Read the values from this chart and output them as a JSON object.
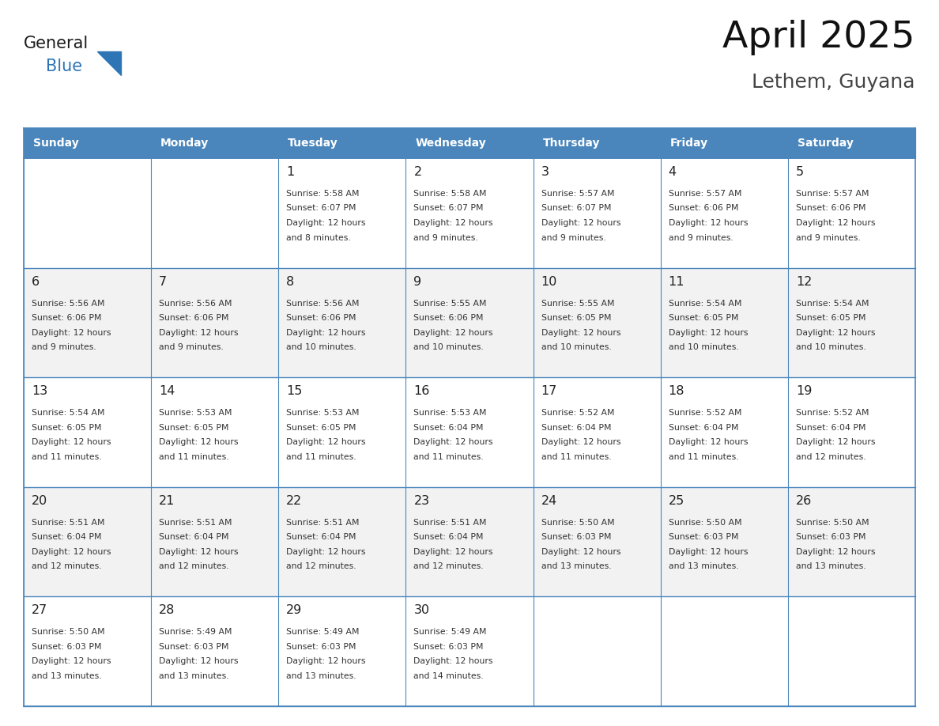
{
  "title": "April 2025",
  "subtitle": "Lethem, Guyana",
  "header_bg": "#4A86BC",
  "header_text_color": "#FFFFFF",
  "cell_bg_white": "#FFFFFF",
  "cell_bg_gray": "#F2F2F2",
  "border_color": "#4A86BC",
  "text_color": "#333333",
  "day_num_color": "#222222",
  "logo_general_color": "#1A1A1A",
  "logo_blue_color": "#2E75B6",
  "triangle_color": "#2E75B6",
  "days_of_week": [
    "Sunday",
    "Monday",
    "Tuesday",
    "Wednesday",
    "Thursday",
    "Friday",
    "Saturday"
  ],
  "calendar": [
    [
      {
        "day": "",
        "sunrise": "",
        "sunset": "",
        "daylight_suffix": ""
      },
      {
        "day": "",
        "sunrise": "",
        "sunset": "",
        "daylight_suffix": ""
      },
      {
        "day": "1",
        "sunrise": "5:58 AM",
        "sunset": "6:07 PM",
        "daylight_suffix": "and 8 minutes."
      },
      {
        "day": "2",
        "sunrise": "5:58 AM",
        "sunset": "6:07 PM",
        "daylight_suffix": "and 9 minutes."
      },
      {
        "day": "3",
        "sunrise": "5:57 AM",
        "sunset": "6:07 PM",
        "daylight_suffix": "and 9 minutes."
      },
      {
        "day": "4",
        "sunrise": "5:57 AM",
        "sunset": "6:06 PM",
        "daylight_suffix": "and 9 minutes."
      },
      {
        "day": "5",
        "sunrise": "5:57 AM",
        "sunset": "6:06 PM",
        "daylight_suffix": "and 9 minutes."
      }
    ],
    [
      {
        "day": "6",
        "sunrise": "5:56 AM",
        "sunset": "6:06 PM",
        "daylight_suffix": "and 9 minutes."
      },
      {
        "day": "7",
        "sunrise": "5:56 AM",
        "sunset": "6:06 PM",
        "daylight_suffix": "and 9 minutes."
      },
      {
        "day": "8",
        "sunrise": "5:56 AM",
        "sunset": "6:06 PM",
        "daylight_suffix": "and 10 minutes."
      },
      {
        "day": "9",
        "sunrise": "5:55 AM",
        "sunset": "6:06 PM",
        "daylight_suffix": "and 10 minutes."
      },
      {
        "day": "10",
        "sunrise": "5:55 AM",
        "sunset": "6:05 PM",
        "daylight_suffix": "and 10 minutes."
      },
      {
        "day": "11",
        "sunrise": "5:54 AM",
        "sunset": "6:05 PM",
        "daylight_suffix": "and 10 minutes."
      },
      {
        "day": "12",
        "sunrise": "5:54 AM",
        "sunset": "6:05 PM",
        "daylight_suffix": "and 10 minutes."
      }
    ],
    [
      {
        "day": "13",
        "sunrise": "5:54 AM",
        "sunset": "6:05 PM",
        "daylight_suffix": "and 11 minutes."
      },
      {
        "day": "14",
        "sunrise": "5:53 AM",
        "sunset": "6:05 PM",
        "daylight_suffix": "and 11 minutes."
      },
      {
        "day": "15",
        "sunrise": "5:53 AM",
        "sunset": "6:05 PM",
        "daylight_suffix": "and 11 minutes."
      },
      {
        "day": "16",
        "sunrise": "5:53 AM",
        "sunset": "6:04 PM",
        "daylight_suffix": "and 11 minutes."
      },
      {
        "day": "17",
        "sunrise": "5:52 AM",
        "sunset": "6:04 PM",
        "daylight_suffix": "and 11 minutes."
      },
      {
        "day": "18",
        "sunrise": "5:52 AM",
        "sunset": "6:04 PM",
        "daylight_suffix": "and 11 minutes."
      },
      {
        "day": "19",
        "sunrise": "5:52 AM",
        "sunset": "6:04 PM",
        "daylight_suffix": "and 12 minutes."
      }
    ],
    [
      {
        "day": "20",
        "sunrise": "5:51 AM",
        "sunset": "6:04 PM",
        "daylight_suffix": "and 12 minutes."
      },
      {
        "day": "21",
        "sunrise": "5:51 AM",
        "sunset": "6:04 PM",
        "daylight_suffix": "and 12 minutes."
      },
      {
        "day": "22",
        "sunrise": "5:51 AM",
        "sunset": "6:04 PM",
        "daylight_suffix": "and 12 minutes."
      },
      {
        "day": "23",
        "sunrise": "5:51 AM",
        "sunset": "6:04 PM",
        "daylight_suffix": "and 12 minutes."
      },
      {
        "day": "24",
        "sunrise": "5:50 AM",
        "sunset": "6:03 PM",
        "daylight_suffix": "and 13 minutes."
      },
      {
        "day": "25",
        "sunrise": "5:50 AM",
        "sunset": "6:03 PM",
        "daylight_suffix": "and 13 minutes."
      },
      {
        "day": "26",
        "sunrise": "5:50 AM",
        "sunset": "6:03 PM",
        "daylight_suffix": "and 13 minutes."
      }
    ],
    [
      {
        "day": "27",
        "sunrise": "5:50 AM",
        "sunset": "6:03 PM",
        "daylight_suffix": "and 13 minutes."
      },
      {
        "day": "28",
        "sunrise": "5:49 AM",
        "sunset": "6:03 PM",
        "daylight_suffix": "and 13 minutes."
      },
      {
        "day": "29",
        "sunrise": "5:49 AM",
        "sunset": "6:03 PM",
        "daylight_suffix": "and 13 minutes."
      },
      {
        "day": "30",
        "sunrise": "5:49 AM",
        "sunset": "6:03 PM",
        "daylight_suffix": "and 14 minutes."
      },
      {
        "day": "",
        "sunrise": "",
        "sunset": "",
        "daylight_suffix": ""
      },
      {
        "day": "",
        "sunrise": "",
        "sunset": "",
        "daylight_suffix": ""
      },
      {
        "day": "",
        "sunrise": "",
        "sunset": "",
        "daylight_suffix": ""
      }
    ]
  ]
}
